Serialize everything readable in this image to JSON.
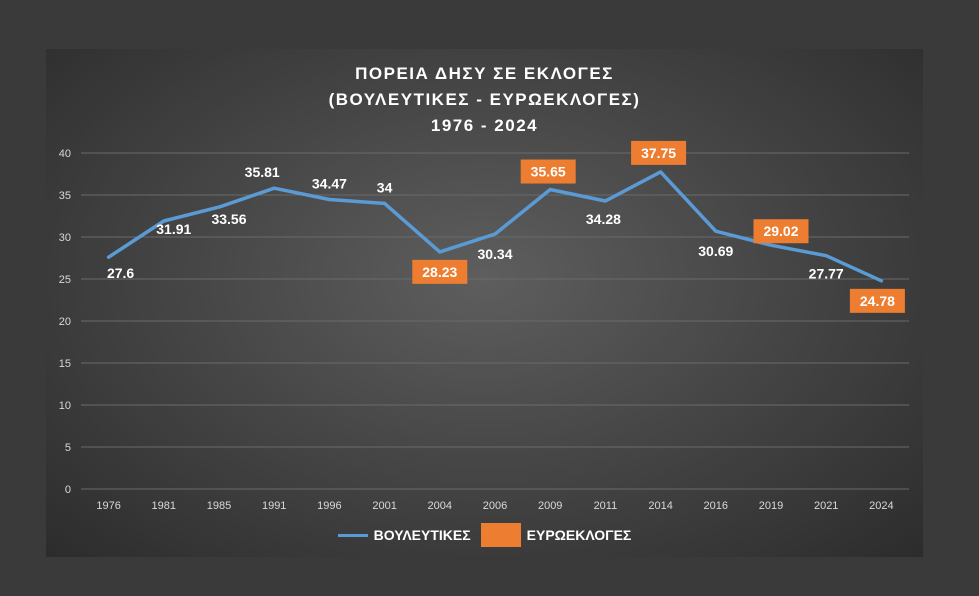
{
  "title_lines": [
    "ΠΟΡΕΙΑ ΔΗΣΥ ΣΕ ΕΚΛΟΓΕΣ",
    "(ΒΟΥΛΕΥΤΙΚΕΣ - ΕΥΡΩΕΚΛΟΓΕΣ)",
    "1976 - 2024"
  ],
  "legend": {
    "line_label": "ΒΟΥΛΕΥΤΙΚΕΣ",
    "box_label": "ΕΥΡΩΕΚΛΟΓΕΣ"
  },
  "colors": {
    "line": "#5b9bd5",
    "highlight": "#ed7d31",
    "text": "#ffffff",
    "grid": "#6a6a6a",
    "axis_text": "#d9d9d9"
  },
  "chart_data": {
    "type": "line",
    "title": "ΠΟΡΕΙΑ ΔΗΣΥ ΣΕ ΕΚΛΟΓΕΣ (ΒΟΥΛΕΥΤΙΚΕΣ - ΕΥΡΩΕΚΛΟΓΕΣ) 1976 - 2024",
    "categories": [
      "1976",
      "1981",
      "1985",
      "1991",
      "1996",
      "2001",
      "2004",
      "2006",
      "2009",
      "2011",
      "2014",
      "2016",
      "2019",
      "2021",
      "2024"
    ],
    "values": [
      27.6,
      31.91,
      33.56,
      35.81,
      34.47,
      34,
      28.23,
      30.34,
      35.65,
      34.28,
      37.75,
      30.69,
      29.02,
      27.77,
      24.78
    ],
    "labels": [
      "27.6",
      "31.91",
      "33.56",
      "35.81",
      "34.47",
      "34",
      "28.23",
      "30.34",
      "35.65",
      "34.28",
      "37.75",
      "30.69",
      "29.02",
      "27.77",
      "24.78"
    ],
    "highlighted": [
      false,
      false,
      false,
      false,
      false,
      false,
      true,
      false,
      true,
      false,
      true,
      false,
      true,
      false,
      true
    ],
    "ylim": [
      0,
      40
    ],
    "yticks": [
      0,
      5,
      10,
      15,
      20,
      25,
      30,
      35,
      40
    ],
    "grid": true,
    "legend_position": "bottom"
  }
}
